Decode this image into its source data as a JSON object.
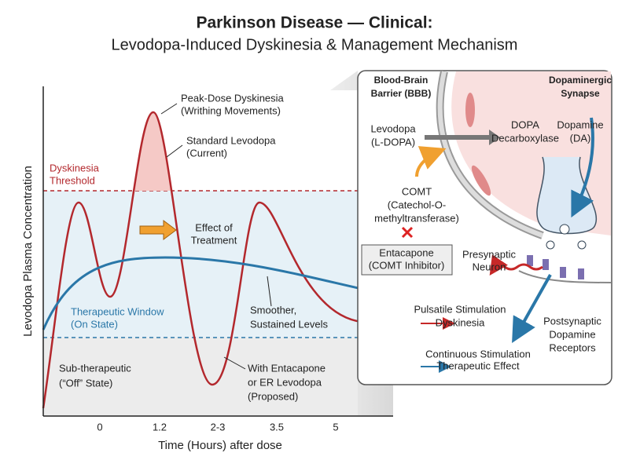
{
  "header": {
    "title": "Parkinson Disease — Clinical:",
    "subtitle": "Levodopa-Induced Dyskinesia & Management Mechanism"
  },
  "plot": {
    "y_axis_label": "Levodopa Plasma Concentration",
    "x_axis_label": "Time (Hours) after dose",
    "x_ticks": [
      "0",
      "1.2",
      "2-3",
      "3.5",
      "5"
    ],
    "threshold": [
      "Dyskinesia",
      "Threshold"
    ],
    "peak": [
      "Peak-Dose Dyskinesia",
      "(Writhing Movements)"
    ],
    "standard": [
      "Standard Levodopa",
      "(Current)"
    ],
    "effect": [
      "Effect of",
      "Treatment"
    ],
    "window": [
      "Therapeutic Window",
      "(On State)"
    ],
    "smoother": [
      "Smoother,",
      "Sustained Levels"
    ],
    "sub": [
      "Sub-therapeutic",
      "(“Off” State)"
    ],
    "proposed": [
      "With Entacapone",
      "or ER Levodopa",
      "(Proposed)"
    ]
  },
  "mechanism": {
    "bbb": [
      "Blood-Brain",
      "Barrier (BBB)"
    ],
    "synapse": [
      "Dopaminergic",
      "Synapse"
    ],
    "levodopa": [
      "Levodopa",
      "(L-DOPA)"
    ],
    "ddc": [
      "DOPA",
      "Decarboxylase"
    ],
    "dopamine": [
      "Dopamine",
      "(DA)"
    ],
    "comt": [
      "COMT",
      "(Catechol-O-",
      "methyltransferase)"
    ],
    "entacapone": [
      "Entacapone",
      "(COMT Inhibitor)"
    ],
    "presynaptic": [
      "Presynaptic",
      "Neuron"
    ],
    "pulsatile": [
      "Pulsatile Stimulation",
      "Dyskinesia"
    ],
    "continuous": [
      "Continuous Stimulation",
      "Therapeutic Effect"
    ],
    "receptors": [
      "Postsynaptic",
      "Dopamine",
      "Receptors"
    ]
  }
}
